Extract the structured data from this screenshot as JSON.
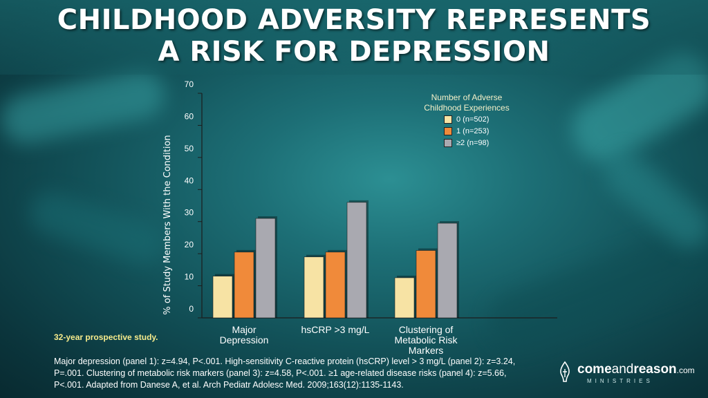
{
  "slide": {
    "title_line1": "CHILDHOOD ADVERSITY REPRESENTS",
    "title_line2": "A RISK FOR DEPRESSION",
    "study_note": "32-year prospective study.",
    "footnote_line1": "Major depression (panel 1): z=4.94, P<.001. High-sensitivity C-reactive protein (hsCRP) level > 3 mg/L (panel 2): z=3.24,",
    "footnote_line2": "P=.001. Clustering of metabolic risk markers (panel 3): z=4.58, P<.001. ≥1 age-related disease risks (panel 4): z=5.66,",
    "footnote_line3": "P<.001. Adapted from Danese A, et al. Arch Pediatr Adolesc Med. 2009;163(12):1135-1143."
  },
  "logo": {
    "part1": "come",
    "part2": "and",
    "part3": "reason",
    "part4": ".com",
    "subtitle": "MINISTRIES"
  },
  "chart_data": {
    "type": "bar",
    "ylabel": "% of Study Members With the Condition",
    "ylim": [
      0,
      70
    ],
    "yticks": [
      0,
      10,
      20,
      30,
      40,
      50,
      60,
      70
    ],
    "categories": [
      [
        "Major",
        "Depression"
      ],
      [
        "hsCRP >3 mg/L"
      ],
      [
        "Clustering of",
        "Metabolic Risk",
        "Markers"
      ]
    ],
    "legend_title_line1": "Number of Adverse",
    "legend_title_line2": "Childhood Experiences",
    "series": [
      {
        "name": "0 (n=502)",
        "color": "#f7e3a4",
        "values": [
          13,
          19,
          12.5
        ]
      },
      {
        "name": "1 (n=253)",
        "color": "#f08a3a",
        "values": [
          20.5,
          20.5,
          21
        ]
      },
      {
        "name": "≥2 (n=98)",
        "color": "#a9a9b0",
        "values": [
          31,
          36,
          29.5
        ]
      }
    ]
  }
}
